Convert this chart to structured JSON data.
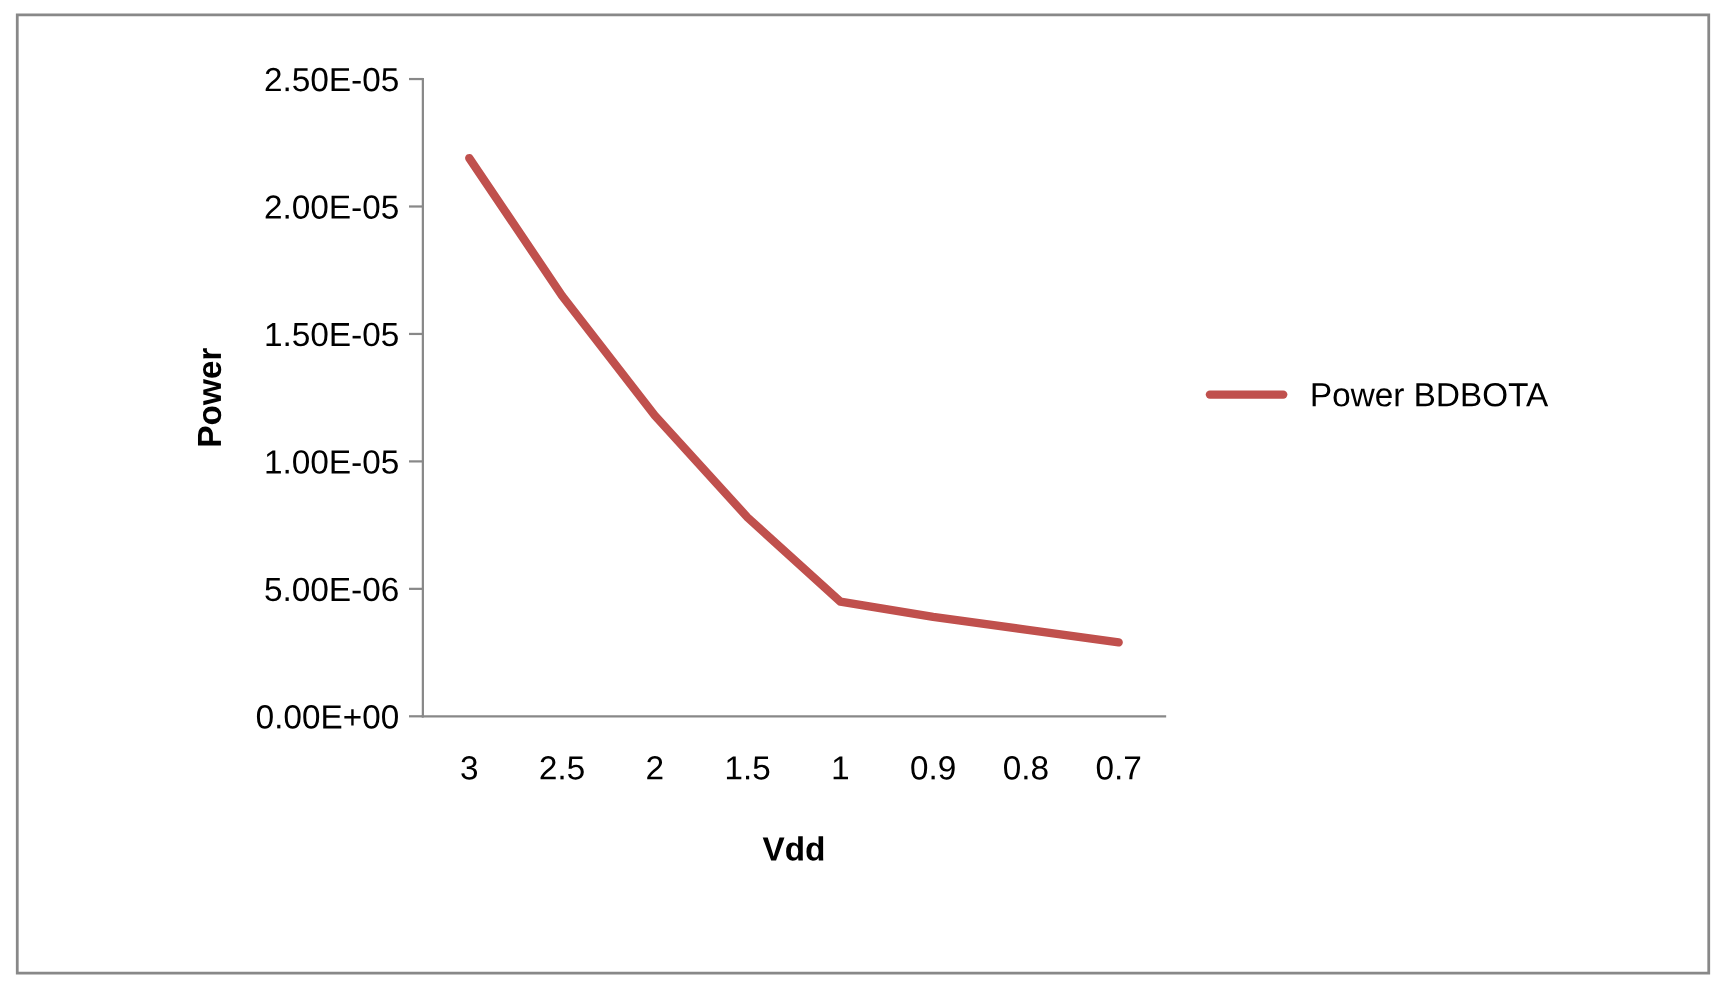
{
  "chart_data": {
    "type": "line",
    "xlabel": "Vdd",
    "ylabel": "Power",
    "categories": [
      "3",
      "2.5",
      "2",
      "1.5",
      "1",
      "0.9",
      "0.8",
      "0.7"
    ],
    "series": [
      {
        "name": "Power BDBOTA",
        "color": "#c0504d",
        "values": [
          2.19e-05,
          1.65e-05,
          1.18e-05,
          7.8e-06,
          4.5e-06,
          3.9e-06,
          3.4e-06,
          2.9e-06
        ]
      }
    ],
    "ylim": [
      0,
      2.5e-05
    ],
    "yticks": [
      {
        "value": 0,
        "label": "0.00E+00"
      },
      {
        "value": 5e-06,
        "label": "5.00E-06"
      },
      {
        "value": 1e-05,
        "label": "1.00E-05"
      },
      {
        "value": 1.5e-05,
        "label": "1.50E-05"
      },
      {
        "value": 2e-05,
        "label": "2.00E-05"
      },
      {
        "value": 2.5e-05,
        "label": "2.50E-05"
      }
    ],
    "grid": false,
    "legend": "right",
    "marker": "none",
    "line_style": "solid"
  }
}
